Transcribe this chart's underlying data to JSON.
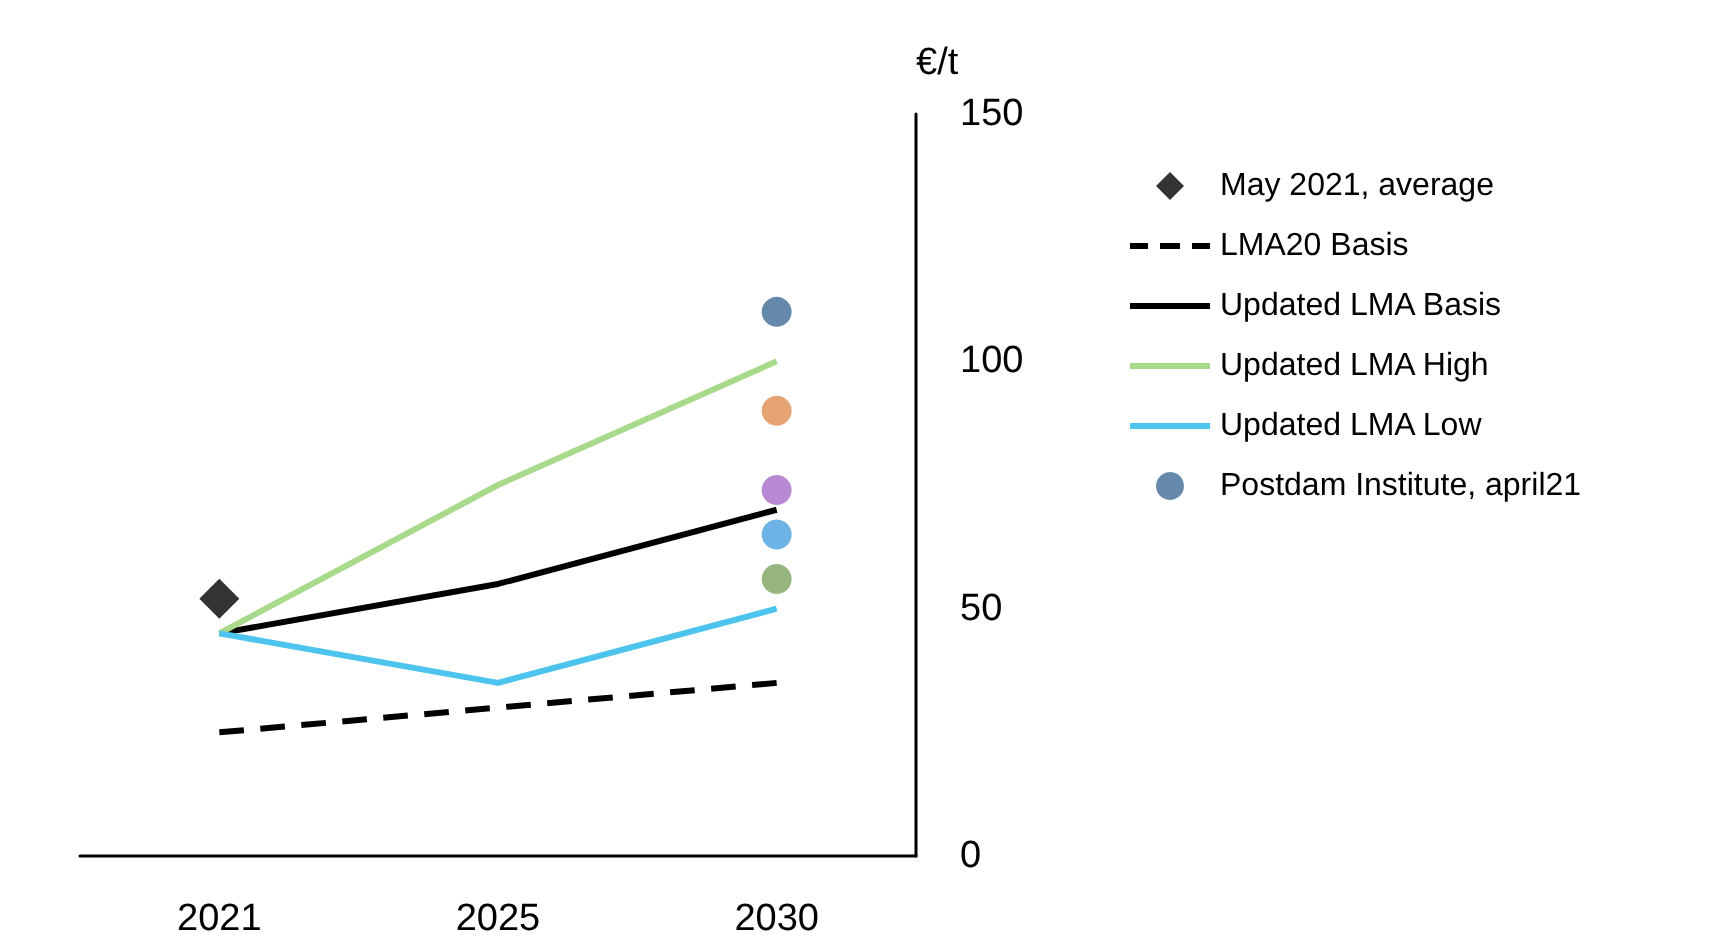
{
  "chart_data": {
    "type": "line",
    "ylabel": "€/t",
    "categories": [
      "2021",
      "2025",
      "2030"
    ],
    "ylim": [
      0,
      150
    ],
    "yticks": [
      0,
      50,
      100,
      150
    ],
    "grid": false,
    "legend": "right",
    "series": [
      {
        "name": "May 2021, average",
        "type": "scatter",
        "marker": "diamond",
        "color": "#000000",
        "values": [
          52,
          null,
          null
        ]
      },
      {
        "name": "LMA20 Basis",
        "color": "#000000",
        "line_style": "dashed",
        "marker": "none",
        "values": [
          25,
          30,
          35
        ]
      },
      {
        "name": "Updated LMA Basis",
        "color": "#000000",
        "line_style": "solid",
        "marker": "none",
        "values": [
          45,
          55,
          70
        ]
      },
      {
        "name": "Updated LMA High",
        "color": "#a9d98b",
        "line_style": "solid",
        "marker": "none",
        "values": [
          45,
          75,
          100
        ]
      },
      {
        "name": "Updated LMA Low",
        "color": "#4dc4ee",
        "line_style": "solid",
        "marker": "none",
        "values": [
          45,
          35,
          50
        ]
      },
      {
        "name": "Postdam Institute, april21",
        "type": "scatter",
        "marker": "circle",
        "color": "#3e6a96",
        "values": [
          null,
          null,
          110
        ]
      },
      {
        "type": "scatter",
        "marker": "circle",
        "color": "#e08c50",
        "values": [
          null,
          null,
          90
        ]
      },
      {
        "type": "scatter",
        "marker": "circle",
        "color": "#a66cc8",
        "values": [
          null,
          null,
          74
        ]
      },
      {
        "type": "scatter",
        "marker": "circle",
        "color": "#7ca35e",
        "values": [
          null,
          null,
          56
        ]
      },
      {
        "type": "scatter",
        "marker": "circle",
        "color": "#4aa0de",
        "values": [
          null,
          null,
          65
        ]
      }
    ]
  }
}
